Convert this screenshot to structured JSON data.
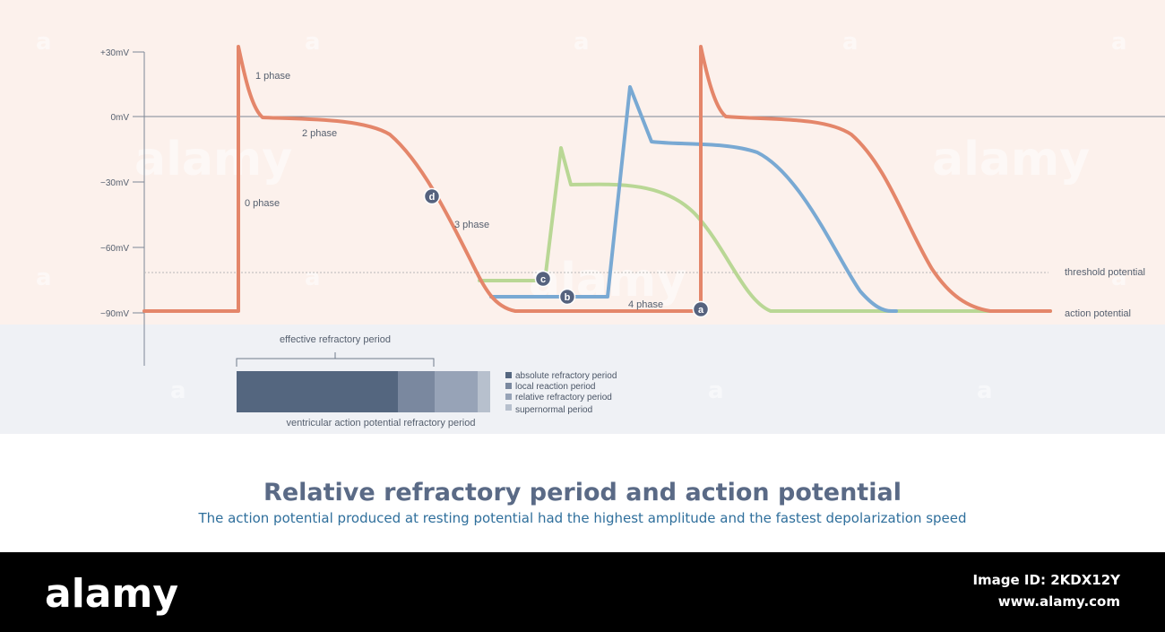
{
  "colors": {
    "upper_bg": "#fcf1ec",
    "lower_bg": "#eff1f5",
    "footer_bg": "#000000",
    "curve_a": "#e4866a",
    "curve_b": "#79a9d3",
    "curve_c": "#b9d795",
    "marker": "#55627e",
    "absolute": "#54667f",
    "local": "#7a889f",
    "relative": "#97a3b7",
    "supernormal": "#b7c0cd"
  },
  "y_axis": {
    "ticks": [
      "+30mV",
      "0mV",
      "−30mV",
      "−60mV",
      "−90mV"
    ]
  },
  "phases": {
    "p0": "0 phase",
    "p1": "1 phase",
    "p2": "2 phase",
    "p3": "3 phase",
    "p4": "4 phase"
  },
  "right_labels": {
    "threshold": "threshold potential",
    "action": "action potential"
  },
  "markers": {
    "a": "a",
    "b": "b",
    "c": "c",
    "d": "d"
  },
  "refractory": {
    "brace_label": "effective refractory period",
    "caption": "ventricular action potential refractory period",
    "segments": [
      {
        "name": "absolute refractory period",
        "fraction": 0.635
      },
      {
        "name": "local reaction period",
        "fraction": 0.145
      },
      {
        "name": "relative refractory period",
        "fraction": 0.17
      },
      {
        "name": "supernormal period",
        "fraction": 0.05
      }
    ]
  },
  "title": "Relative refractory period and action potential",
  "subtitle": "The action potential produced at resting potential had the highest amplitude and the fastest depolarization speed",
  "watermark": {
    "logo": "alamy",
    "small": "a"
  },
  "footer": {
    "logo": "alamy",
    "image_id": "Image ID: 2KDX12Y",
    "site": "www.alamy.com"
  }
}
